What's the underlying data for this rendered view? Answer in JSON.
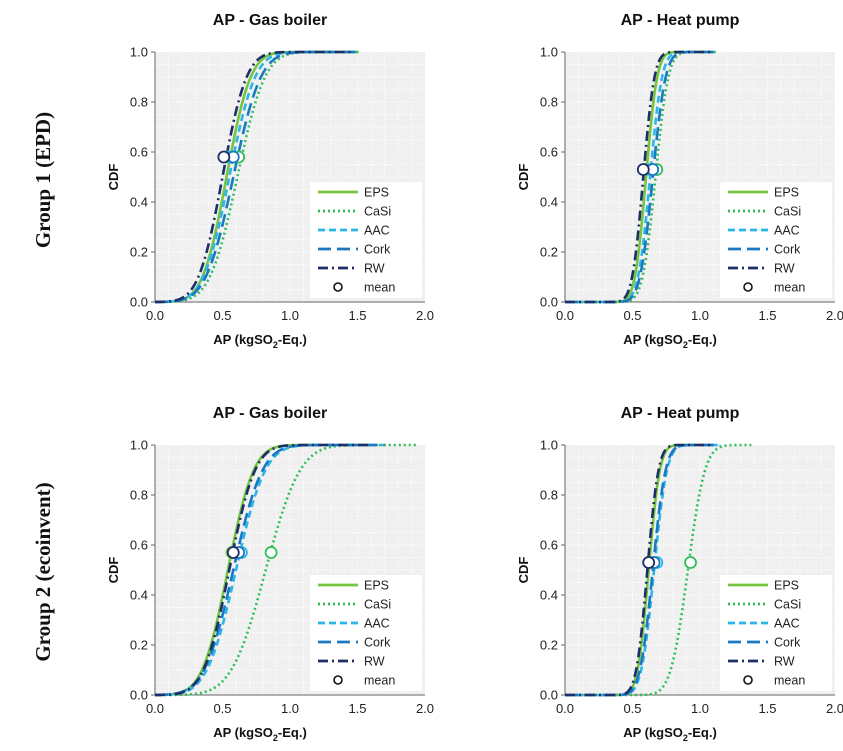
{
  "row_labels": [
    "Group 1 (EPD)",
    "Group 2 (ecoinvent)"
  ],
  "legend": {
    "entries": [
      "EPS",
      "CaSi",
      "AAC",
      "Cork",
      "RW"
    ],
    "mean_label": "mean"
  },
  "colors": {
    "EPS": "#76c442",
    "CaSi": "#2fbf5a",
    "AAC": "#29b6e8",
    "Cork": "#1b78c3",
    "RW": "#1c2f66",
    "plot_bg": "#f0f0f0",
    "grid": "#ffffff"
  },
  "chart_data": [
    {
      "type": "line",
      "title": "AP - Gas boiler",
      "xlabel": "AP (kgSO2-Eq.)",
      "xlabel_parts": [
        "AP (kgSO",
        "2",
        "-Eq.)"
      ],
      "ylabel": "CDF",
      "xlim": [
        0,
        2
      ],
      "ylim": [
        0,
        1
      ],
      "xticks": [
        "0.0",
        "0.5",
        "1.0",
        "1.5",
        "2.0"
      ],
      "yticks": [
        "0.0",
        "0.2",
        "0.4",
        "0.6",
        "0.8",
        "1.0"
      ],
      "grid": true,
      "legend_position": "bottom-right",
      "series": [
        {
          "name": "EPS",
          "mu": 0.53,
          "sigma": 0.14,
          "min": 0.0,
          "max": 1.5,
          "mean": 0.53,
          "mean_cdf": 0.58
        },
        {
          "name": "CaSi",
          "mu": 0.61,
          "sigma": 0.16,
          "min": 0.0,
          "max": 1.53,
          "mean": 0.62,
          "mean_cdf": 0.58
        },
        {
          "name": "AAC",
          "mu": 0.55,
          "sigma": 0.15,
          "min": 0.0,
          "max": 1.48,
          "mean": 0.55,
          "mean_cdf": 0.58
        },
        {
          "name": "Cork",
          "mu": 0.58,
          "sigma": 0.16,
          "min": 0.0,
          "max": 1.52,
          "mean": 0.58,
          "mean_cdf": 0.58
        },
        {
          "name": "RW",
          "mu": 0.5,
          "sigma": 0.14,
          "min": 0.0,
          "max": 1.45,
          "mean": 0.51,
          "mean_cdf": 0.58
        }
      ]
    },
    {
      "type": "line",
      "title": "AP - Heat pump",
      "xlabel": "AP (kgSO2-Eq.)",
      "xlabel_parts": [
        "AP (kgSO",
        "2",
        "-Eq.)"
      ],
      "ylabel": "CDF",
      "xlim": [
        0,
        2
      ],
      "ylim": [
        0,
        1
      ],
      "xticks": [
        "0.0",
        "0.5",
        "1.0",
        "1.5",
        "2.0"
      ],
      "yticks": [
        "0.0",
        "0.2",
        "0.4",
        "0.6",
        "0.8",
        "1.0"
      ],
      "grid": true,
      "legend_position": "bottom-right",
      "series": [
        {
          "name": "EPS",
          "mu": 0.6,
          "sigma": 0.065,
          "min": 0.0,
          "max": 1.1,
          "mean": 0.6,
          "mean_cdf": 0.53
        },
        {
          "name": "CaSi",
          "mu": 0.67,
          "sigma": 0.075,
          "min": 0.0,
          "max": 1.13,
          "mean": 0.68,
          "mean_cdf": 0.53
        },
        {
          "name": "AAC",
          "mu": 0.63,
          "sigma": 0.07,
          "min": 0.0,
          "max": 1.1,
          "mean": 0.63,
          "mean_cdf": 0.53
        },
        {
          "name": "Cork",
          "mu": 0.65,
          "sigma": 0.075,
          "min": 0.0,
          "max": 1.12,
          "mean": 0.65,
          "mean_cdf": 0.53
        },
        {
          "name": "RW",
          "mu": 0.58,
          "sigma": 0.065,
          "min": 0.0,
          "max": 1.08,
          "mean": 0.58,
          "mean_cdf": 0.53
        }
      ]
    },
    {
      "type": "line",
      "title": "AP - Gas boiler",
      "xlabel": "AP (kgSO2-Eq.)",
      "xlabel_parts": [
        "AP (kgSO",
        "2",
        "-Eq.)"
      ],
      "ylabel": "CDF",
      "xlim": [
        0,
        2
      ],
      "ylim": [
        0,
        1
      ],
      "xticks": [
        "0.0",
        "0.5",
        "1.0",
        "1.5",
        "2.0"
      ],
      "yticks": [
        "0.0",
        "0.2",
        "0.4",
        "0.6",
        "0.8",
        "1.0"
      ],
      "grid": true,
      "legend_position": "bottom-right",
      "series": [
        {
          "name": "EPS",
          "mu": 0.54,
          "sigma": 0.15,
          "min": 0.0,
          "max": 1.6,
          "mean": 0.57,
          "mean_cdf": 0.57
        },
        {
          "name": "CaSi",
          "mu": 0.82,
          "sigma": 0.2,
          "min": 0.0,
          "max": 1.95,
          "mean": 0.86,
          "mean_cdf": 0.57
        },
        {
          "name": "AAC",
          "mu": 0.6,
          "sigma": 0.17,
          "min": 0.0,
          "max": 1.7,
          "mean": 0.64,
          "mean_cdf": 0.57
        },
        {
          "name": "Cork",
          "mu": 0.58,
          "sigma": 0.17,
          "min": 0.0,
          "max": 1.7,
          "mean": 0.62,
          "mean_cdf": 0.57
        },
        {
          "name": "RW",
          "mu": 0.55,
          "sigma": 0.15,
          "min": 0.0,
          "max": 1.6,
          "mean": 0.58,
          "mean_cdf": 0.57
        }
      ]
    },
    {
      "type": "line",
      "title": "AP - Heat pump",
      "xlabel": "AP (kgSO2-Eq.)",
      "xlabel_parts": [
        "AP (kgSO",
        "2",
        "-Eq.)"
      ],
      "ylabel": "CDF",
      "xlim": [
        0,
        2
      ],
      "ylim": [
        0,
        1
      ],
      "xticks": [
        "0.0",
        "0.5",
        "1.0",
        "1.5",
        "2.0"
      ],
      "yticks": [
        "0.0",
        "0.2",
        "0.4",
        "0.6",
        "0.8",
        "1.0"
      ],
      "grid": true,
      "legend_position": "bottom-right",
      "series": [
        {
          "name": "EPS",
          "mu": 0.62,
          "sigma": 0.065,
          "min": 0.0,
          "max": 1.1,
          "mean": 0.63,
          "mean_cdf": 0.53
        },
        {
          "name": "CaSi",
          "mu": 0.91,
          "sigma": 0.1,
          "min": 0.0,
          "max": 1.38,
          "mean": 0.93,
          "mean_cdf": 0.53
        },
        {
          "name": "AAC",
          "mu": 0.66,
          "sigma": 0.075,
          "min": 0.0,
          "max": 1.15,
          "mean": 0.68,
          "mean_cdf": 0.53
        },
        {
          "name": "Cork",
          "mu": 0.65,
          "sigma": 0.075,
          "min": 0.0,
          "max": 1.15,
          "mean": 0.66,
          "mean_cdf": 0.53
        },
        {
          "name": "RW",
          "mu": 0.61,
          "sigma": 0.065,
          "min": 0.0,
          "max": 1.1,
          "mean": 0.62,
          "mean_cdf": 0.53
        }
      ]
    }
  ]
}
